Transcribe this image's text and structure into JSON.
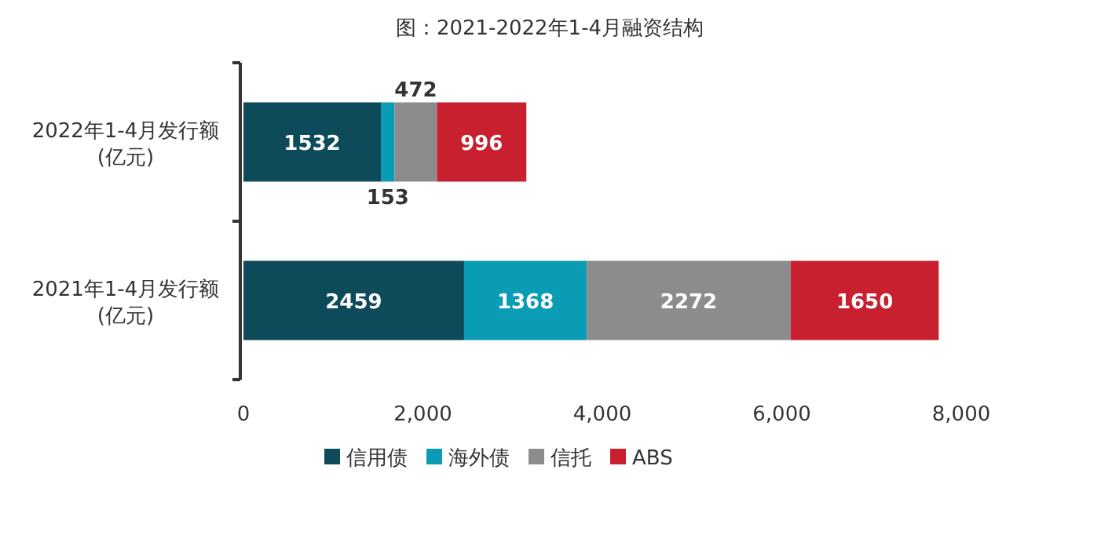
{
  "chart_data": {
    "type": "bar",
    "orientation": "horizontal",
    "stacked": true,
    "title": "图：2021-2022年1-4月融资结构",
    "categories": [
      "2022年1-4月发行额\n(亿元)",
      "2021年1-4月发行额\n(亿元)"
    ],
    "series": [
      {
        "name": "信用债",
        "color": "#0d4a5a",
        "values": [
          1532,
          2459
        ]
      },
      {
        "name": "海外债",
        "color": "#0a9bb5",
        "values": [
          153,
          1368
        ]
      },
      {
        "name": "信托",
        "color": "#8c8c8c",
        "values": [
          472,
          2272
        ]
      },
      {
        "name": "ABS",
        "color": "#c8202f",
        "values": [
          996,
          1650
        ]
      }
    ],
    "xlim": [
      0,
      8000
    ],
    "xticks": [
      0,
      {
        "value": 2000,
        "label": "2,000"
      },
      {
        "value": 4000,
        "label": "4,000"
      },
      {
        "value": 6000,
        "label": "6,000"
      },
      {
        "value": 8000,
        "label": "8,000"
      }
    ],
    "data_labels": true,
    "legend": "bottom",
    "grid": false
  }
}
